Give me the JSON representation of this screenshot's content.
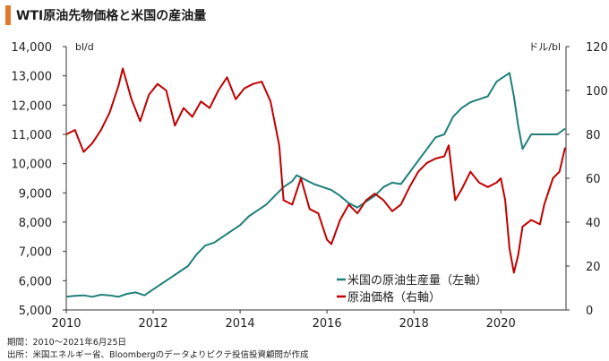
{
  "title": "WTI原油先物価格と米国の産油量",
  "footnotes": {
    "period": "期間：2010～2021年6月25日",
    "source": "出所：米国エネルギー省、Bloombergのデータよりピクテ投信投資顧問が作成"
  },
  "colors": {
    "accent": "#e07a2a",
    "production": "#1f7f7a",
    "price": "#c00000"
  },
  "chart_data": {
    "type": "line",
    "x_range": [
      2010,
      2021.5
    ],
    "x_ticks": [
      "2010",
      "2012",
      "2014",
      "2016",
      "2018",
      "2020"
    ],
    "y_left": {
      "unit": "bl/d",
      "range": [
        5000,
        14000
      ],
      "ticks": [
        "5,000",
        "6,000",
        "7,000",
        "8,000",
        "9,000",
        "10,000",
        "11,000",
        "12,000",
        "13,000",
        "14,000"
      ]
    },
    "y_right": {
      "unit": "ドル/bl",
      "range": [
        0,
        120
      ],
      "ticks": [
        "0",
        "20",
        "40",
        "60",
        "80",
        "100",
        "120"
      ]
    },
    "legend": {
      "placement": "lower-right"
    },
    "series": [
      {
        "name": "米国の原油生産量（左軸）",
        "axis": "left",
        "points": [
          [
            2010.0,
            5450
          ],
          [
            2010.2,
            5480
          ],
          [
            2010.4,
            5500
          ],
          [
            2010.6,
            5450
          ],
          [
            2010.8,
            5520
          ],
          [
            2011.0,
            5500
          ],
          [
            2011.2,
            5450
          ],
          [
            2011.4,
            5550
          ],
          [
            2011.6,
            5600
          ],
          [
            2011.8,
            5500
          ],
          [
            2012.0,
            5700
          ],
          [
            2012.2,
            5900
          ],
          [
            2012.4,
            6100
          ],
          [
            2012.6,
            6300
          ],
          [
            2012.8,
            6500
          ],
          [
            2013.0,
            6900
          ],
          [
            2013.2,
            7200
          ],
          [
            2013.4,
            7300
          ],
          [
            2013.6,
            7500
          ],
          [
            2013.8,
            7700
          ],
          [
            2014.0,
            7900
          ],
          [
            2014.2,
            8200
          ],
          [
            2014.4,
            8400
          ],
          [
            2014.6,
            8600
          ],
          [
            2014.8,
            8900
          ],
          [
            2015.0,
            9200
          ],
          [
            2015.2,
            9400
          ],
          [
            2015.3,
            9600
          ],
          [
            2015.5,
            9450
          ],
          [
            2015.7,
            9300
          ],
          [
            2015.9,
            9200
          ],
          [
            2016.1,
            9100
          ],
          [
            2016.3,
            8900
          ],
          [
            2016.5,
            8650
          ],
          [
            2016.7,
            8500
          ],
          [
            2016.9,
            8700
          ],
          [
            2017.1,
            8900
          ],
          [
            2017.3,
            9200
          ],
          [
            2017.5,
            9350
          ],
          [
            2017.7,
            9300
          ],
          [
            2017.9,
            9700
          ],
          [
            2018.1,
            10100
          ],
          [
            2018.3,
            10500
          ],
          [
            2018.5,
            10900
          ],
          [
            2018.7,
            11000
          ],
          [
            2018.9,
            11600
          ],
          [
            2019.1,
            11900
          ],
          [
            2019.3,
            12100
          ],
          [
            2019.5,
            12200
          ],
          [
            2019.7,
            12300
          ],
          [
            2019.9,
            12800
          ],
          [
            2020.1,
            13000
          ],
          [
            2020.2,
            13100
          ],
          [
            2020.3,
            12300
          ],
          [
            2020.4,
            11300
          ],
          [
            2020.5,
            10500
          ],
          [
            2020.7,
            11000
          ],
          [
            2020.9,
            11000
          ],
          [
            2021.1,
            11000
          ],
          [
            2021.3,
            11000
          ],
          [
            2021.48,
            11200
          ]
        ]
      },
      {
        "name": "原油価格（右軸）",
        "axis": "right",
        "points": [
          [
            2010.0,
            80
          ],
          [
            2010.2,
            82
          ],
          [
            2010.4,
            72
          ],
          [
            2010.6,
            76
          ],
          [
            2010.8,
            82
          ],
          [
            2011.0,
            90
          ],
          [
            2011.2,
            102
          ],
          [
            2011.3,
            110
          ],
          [
            2011.5,
            96
          ],
          [
            2011.7,
            86
          ],
          [
            2011.9,
            98
          ],
          [
            2012.1,
            103
          ],
          [
            2012.3,
            100
          ],
          [
            2012.5,
            84
          ],
          [
            2012.7,
            92
          ],
          [
            2012.9,
            88
          ],
          [
            2013.1,
            95
          ],
          [
            2013.3,
            92
          ],
          [
            2013.5,
            100
          ],
          [
            2013.7,
            106
          ],
          [
            2013.9,
            96
          ],
          [
            2014.1,
            101
          ],
          [
            2014.3,
            103
          ],
          [
            2014.5,
            104
          ],
          [
            2014.7,
            95
          ],
          [
            2014.9,
            75
          ],
          [
            2015.0,
            50
          ],
          [
            2015.2,
            48
          ],
          [
            2015.4,
            60
          ],
          [
            2015.6,
            46
          ],
          [
            2015.8,
            44
          ],
          [
            2016.0,
            32
          ],
          [
            2016.1,
            30
          ],
          [
            2016.3,
            41
          ],
          [
            2016.5,
            48
          ],
          [
            2016.7,
            44
          ],
          [
            2016.9,
            50
          ],
          [
            2017.1,
            53
          ],
          [
            2017.3,
            50
          ],
          [
            2017.5,
            45
          ],
          [
            2017.7,
            48
          ],
          [
            2017.9,
            56
          ],
          [
            2018.1,
            63
          ],
          [
            2018.3,
            67
          ],
          [
            2018.5,
            69
          ],
          [
            2018.7,
            70
          ],
          [
            2018.8,
            75
          ],
          [
            2018.95,
            50
          ],
          [
            2019.1,
            55
          ],
          [
            2019.3,
            63
          ],
          [
            2019.5,
            58
          ],
          [
            2019.7,
            56
          ],
          [
            2019.9,
            58
          ],
          [
            2020.0,
            60
          ],
          [
            2020.1,
            50
          ],
          [
            2020.2,
            28
          ],
          [
            2020.3,
            17
          ],
          [
            2020.4,
            25
          ],
          [
            2020.5,
            38
          ],
          [
            2020.7,
            41
          ],
          [
            2020.9,
            39
          ],
          [
            2021.0,
            48
          ],
          [
            2021.2,
            60
          ],
          [
            2021.35,
            63
          ],
          [
            2021.48,
            74
          ]
        ]
      }
    ]
  }
}
